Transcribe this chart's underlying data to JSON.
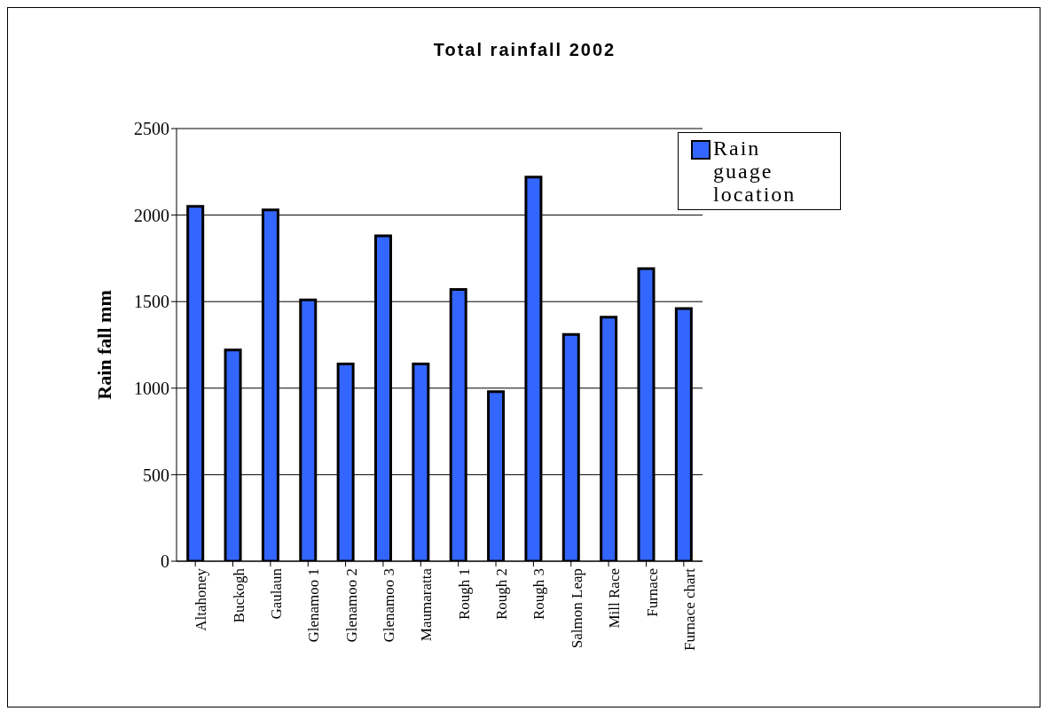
{
  "chart_data": {
    "type": "bar",
    "title": "Total rainfall 2002",
    "ylabel": "Rain fall mm",
    "categories": [
      "Altahoney",
      "Buckogh",
      "Gaulaun",
      "Glenamoo 1",
      "Glenamoo 2",
      "Glenamoo 3",
      "Maumaratta",
      "Rough 1",
      "Rough 2",
      "Rough 3",
      "Salmon Leap",
      "Mill Race",
      "Furnace",
      "Furnace chart"
    ],
    "series": [
      {
        "name": "Rain guage location",
        "color": "#3366ff",
        "values": [
          2050,
          1220,
          2030,
          1510,
          1140,
          1880,
          1140,
          1570,
          980,
          2220,
          1310,
          1410,
          1690,
          1460
        ]
      }
    ],
    "ylim": [
      0,
      2500
    ],
    "yticks": [
      0,
      500,
      1000,
      1500,
      2000,
      2500
    ],
    "grid": "y",
    "legend": "top right"
  }
}
